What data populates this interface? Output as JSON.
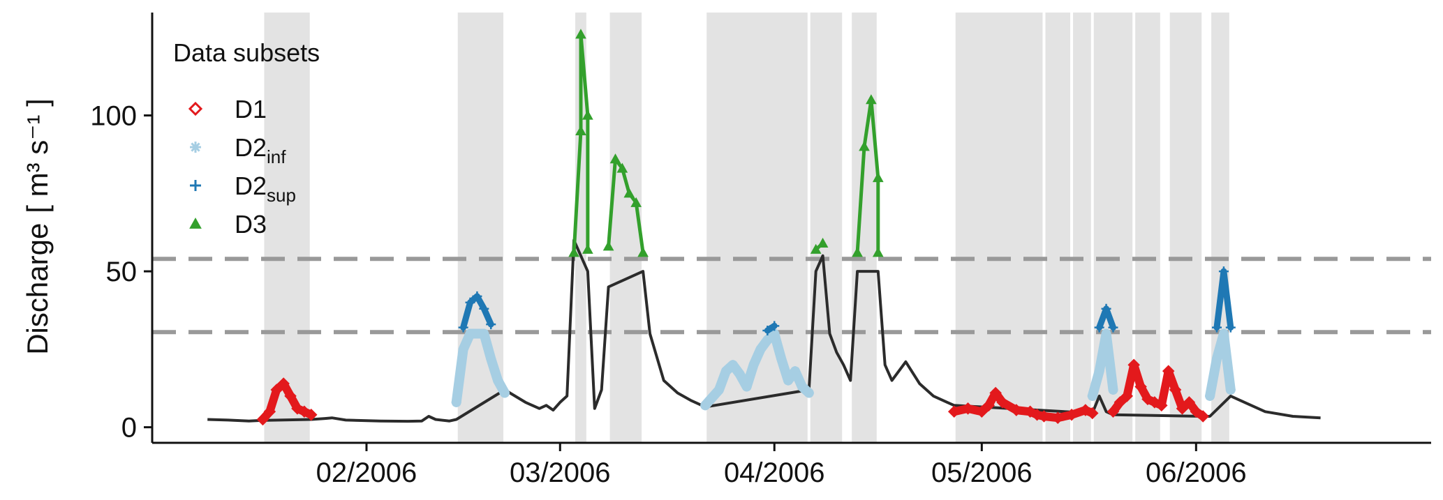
{
  "chart_data": {
    "type": "line",
    "ylabel": "Discharge",
    "ylabel_unit": "[ m³ s⁻¹ ]",
    "ylim": [
      -5,
      133
    ],
    "yticks": [
      0,
      50,
      100
    ],
    "xlim": [
      "2006-01-01",
      "2006-07-05"
    ],
    "xticks": [
      {
        "date": "2006-02-01",
        "label": "02/2006"
      },
      {
        "date": "2006-03-01",
        "label": "03/2006"
      },
      {
        "date": "2006-04-01",
        "label": "04/2006"
      },
      {
        "date": "2006-05-01",
        "label": "05/2006"
      },
      {
        "date": "2006-06-01",
        "label": "06/2006"
      }
    ],
    "thresholds": [
      30.5,
      54
    ],
    "shaded_periods": [
      [
        "2006-01-17",
        "2006-01-24"
      ],
      [
        "2006-02-14",
        "2006-02-21"
      ],
      [
        "2006-03-03",
        "2006-03-05"
      ],
      [
        "2006-03-08",
        "2006-03-13"
      ],
      [
        "2006-03-22",
        "2006-04-06"
      ],
      [
        "2006-04-06",
        "2006-04-11"
      ],
      [
        "2006-04-12",
        "2006-04-16"
      ],
      [
        "2006-04-27",
        "2006-05-10"
      ],
      [
        "2006-05-10",
        "2006-05-14"
      ],
      [
        "2006-05-14",
        "2006-05-17"
      ],
      [
        "2006-05-17",
        "2006-05-23"
      ],
      [
        "2006-05-23",
        "2006-05-27"
      ],
      [
        "2006-05-28",
        "2006-06-02"
      ],
      [
        "2006-06-03",
        "2006-06-06"
      ]
    ],
    "series": [
      {
        "key": "Q",
        "name": "",
        "color": "#2b2b2b",
        "points": [
          [
            "2006-01-09",
            2.5
          ],
          [
            "2006-01-12",
            2.3
          ],
          [
            "2006-01-15",
            2.0
          ],
          [
            "2006-01-17",
            2.2
          ],
          [
            "2006-01-24",
            2.5
          ],
          [
            "2006-01-26",
            2.8
          ],
          [
            "2006-01-27",
            3.0
          ],
          [
            "2006-01-29",
            2.3
          ],
          [
            "2006-02-03",
            2.0
          ],
          [
            "2006-02-07",
            1.9
          ],
          [
            "2006-02-09",
            2.0
          ],
          [
            "2006-02-10",
            3.5
          ],
          [
            "2006-02-11",
            2.5
          ],
          [
            "2006-02-13",
            2.0
          ],
          [
            "2006-02-14",
            2.5
          ],
          [
            "2006-02-21",
            12.0
          ],
          [
            "2006-02-24",
            8.0
          ],
          [
            "2006-02-26",
            6.0
          ],
          [
            "2006-02-27",
            7.0
          ],
          [
            "2006-02-28",
            5.5
          ],
          [
            "2006-03-01",
            8.0
          ],
          [
            "2006-03-02",
            10.0
          ],
          [
            "2006-03-03",
            60.0
          ],
          [
            "2006-03-05",
            50.0
          ],
          [
            "2006-03-06",
            6.0
          ],
          [
            "2006-03-07",
            12.0
          ],
          [
            "2006-03-08",
            45.0
          ],
          [
            "2006-03-13",
            50.0
          ],
          [
            "2006-03-14",
            30.0
          ],
          [
            "2006-03-16",
            15.0
          ],
          [
            "2006-03-18",
            11.0
          ],
          [
            "2006-03-20",
            8.5
          ],
          [
            "2006-03-22",
            6.5
          ],
          [
            "2006-04-06",
            12.0
          ],
          [
            "2006-04-07",
            50.0
          ],
          [
            "2006-04-08",
            55.0
          ],
          [
            "2006-04-09",
            30.0
          ],
          [
            "2006-04-10",
            24.0
          ],
          [
            "2006-04-11",
            20.0
          ],
          [
            "2006-04-12",
            15.0
          ],
          [
            "2006-04-13",
            50.0
          ],
          [
            "2006-04-16",
            50.0
          ],
          [
            "2006-04-17",
            20.0
          ],
          [
            "2006-04-18",
            15.0
          ],
          [
            "2006-04-20",
            21.0
          ],
          [
            "2006-04-22",
            14.0
          ],
          [
            "2006-04-24",
            10.0
          ],
          [
            "2006-04-26",
            8.0
          ],
          [
            "2006-04-27",
            7.0
          ],
          [
            "2006-05-17",
            4.5
          ],
          [
            "2006-05-18",
            10.0
          ],
          [
            "2006-05-19",
            5.0
          ],
          [
            "2006-05-20",
            4.0
          ],
          [
            "2006-06-02",
            3.5
          ],
          [
            "2006-06-03",
            3.5
          ],
          [
            "2006-06-06",
            10.0
          ],
          [
            "2006-06-08",
            8.0
          ],
          [
            "2006-06-11",
            5.0
          ],
          [
            "2006-06-15",
            3.5
          ],
          [
            "2006-06-19",
            3.0
          ]
        ]
      },
      {
        "key": "D1",
        "name": "D1",
        "color": "#e3191c",
        "points": [
          [
            "2006-01-17",
            2.5
          ],
          [
            "2006-01-18",
            5.0
          ],
          [
            "2006-01-19",
            12.0
          ],
          [
            "2006-01-20",
            14.0
          ],
          [
            "2006-01-21",
            10.0
          ],
          [
            "2006-01-22",
            6.0
          ],
          [
            "2006-01-23",
            5.0
          ],
          [
            "2006-01-24",
            4.0
          ],
          [
            "2006-04-27",
            5.0
          ],
          [
            "2006-04-29",
            6.0
          ],
          [
            "2006-05-01",
            5.0
          ],
          [
            "2006-05-02",
            7.0
          ],
          [
            "2006-05-03",
            11.0
          ],
          [
            "2006-05-04",
            8.0
          ],
          [
            "2006-05-06",
            5.5
          ],
          [
            "2006-05-08",
            5.0
          ],
          [
            "2006-05-09",
            4.0
          ],
          [
            "2006-05-10",
            3.5
          ],
          [
            "2006-05-12",
            3.0
          ],
          [
            "2006-05-14",
            4.0
          ],
          [
            "2006-05-16",
            5.5
          ],
          [
            "2006-05-17",
            4.5
          ],
          [
            "2006-05-20",
            5.0
          ],
          [
            "2006-05-21",
            8.0
          ],
          [
            "2006-05-22",
            10.0
          ],
          [
            "2006-05-23",
            20.0
          ],
          [
            "2006-05-24",
            13.0
          ],
          [
            "2006-05-25",
            9.0
          ],
          [
            "2006-05-26",
            8.0
          ],
          [
            "2006-05-27",
            7.0
          ],
          [
            "2006-05-28",
            18.0
          ],
          [
            "2006-05-29",
            12.0
          ],
          [
            "2006-05-30",
            6.0
          ],
          [
            "2006-05-31",
            8.0
          ],
          [
            "2006-06-01",
            5.0
          ],
          [
            "2006-06-02",
            3.5
          ]
        ]
      },
      {
        "key": "D2inf",
        "name": "D2",
        "subscript": "inf",
        "color": "#a6cee3",
        "points": [
          [
            "2006-02-14",
            8.0
          ],
          [
            "2006-02-15",
            25.0
          ],
          [
            "2006-02-16",
            30.0
          ],
          [
            "2006-02-18",
            30.0
          ],
          [
            "2006-02-19",
            22.0
          ],
          [
            "2006-02-20",
            15.0
          ],
          [
            "2006-02-21",
            11.0
          ],
          [
            "2006-03-22",
            7.0
          ],
          [
            "2006-03-24",
            12.0
          ],
          [
            "2006-03-25",
            18.0
          ],
          [
            "2006-03-26",
            20.0
          ],
          [
            "2006-03-27",
            17.0
          ],
          [
            "2006-03-28",
            13.0
          ],
          [
            "2006-03-29",
            20.0
          ],
          [
            "2006-03-30",
            25.0
          ],
          [
            "2006-03-31",
            28.0
          ],
          [
            "2006-04-01",
            30.0
          ],
          [
            "2006-04-02",
            22.0
          ],
          [
            "2006-04-03",
            15.0
          ],
          [
            "2006-04-04",
            18.0
          ],
          [
            "2006-04-05",
            13.0
          ],
          [
            "2006-04-06",
            11.0
          ],
          [
            "2006-05-17",
            10.0
          ],
          [
            "2006-05-18",
            18.0
          ],
          [
            "2006-05-19",
            30.0
          ],
          [
            "2006-05-20",
            12.0
          ],
          [
            "2006-06-03",
            10.0
          ],
          [
            "2006-06-04",
            22.0
          ],
          [
            "2006-06-05",
            30.0
          ],
          [
            "2006-06-06",
            12.0
          ]
        ]
      },
      {
        "key": "D2sup",
        "name": "D2",
        "subscript": "sup",
        "color": "#1f78b4",
        "points": [
          [
            "2006-02-15",
            32.0
          ],
          [
            "2006-02-16",
            40.0
          ],
          [
            "2006-02-17",
            42.0
          ],
          [
            "2006-02-18",
            38.0
          ],
          [
            "2006-02-19",
            33.0
          ],
          [
            "2006-03-31",
            31.0
          ],
          [
            "2006-04-01",
            32.5
          ],
          [
            "2006-05-18",
            32.0
          ],
          [
            "2006-05-19",
            38.0
          ],
          [
            "2006-05-20",
            32.0
          ],
          [
            "2006-06-04",
            32.0
          ],
          [
            "2006-06-05",
            50.0
          ],
          [
            "2006-06-06",
            32.0
          ]
        ]
      },
      {
        "key": "D3",
        "name": "D3",
        "color": "#33a02c",
        "points": [
          [
            "2006-03-03",
            56.0
          ],
          [
            "2006-03-04",
            95.0
          ],
          [
            "2006-03-04",
            126.0
          ],
          [
            "2006-03-05",
            100.0
          ],
          [
            "2006-03-05",
            57.0
          ],
          [
            "2006-03-08",
            58.0
          ],
          [
            "2006-03-09",
            86.0
          ],
          [
            "2006-03-10",
            83.0
          ],
          [
            "2006-03-11",
            75.0
          ],
          [
            "2006-03-12",
            72.0
          ],
          [
            "2006-03-13",
            56.0
          ],
          [
            "2006-04-07",
            57.0
          ],
          [
            "2006-04-08",
            59.0
          ],
          [
            "2006-04-13",
            56.0
          ],
          [
            "2006-04-14",
            90.0
          ],
          [
            "2006-04-15",
            105.0
          ],
          [
            "2006-04-16",
            80.0
          ],
          [
            "2006-04-16",
            56.0
          ]
        ]
      }
    ],
    "legend": {
      "title": "Data subsets",
      "position": "top-left",
      "entries": [
        {
          "key": "D1",
          "label": "D1",
          "subscript": "",
          "marker": "diamond-open",
          "color": "#e3191c"
        },
        {
          "key": "D2inf",
          "label": "D2",
          "subscript": "inf",
          "marker": "asterisk",
          "color": "#a6cee3"
        },
        {
          "key": "D2sup",
          "label": "D2",
          "subscript": "sup",
          "marker": "plus",
          "color": "#1f78b4"
        },
        {
          "key": "D3",
          "label": "D3",
          "subscript": "",
          "marker": "triangle",
          "color": "#33a02c"
        }
      ]
    },
    "colors": {
      "shade": "#e3e3e3",
      "threshold": "#999999",
      "axis": "#111111"
    }
  }
}
